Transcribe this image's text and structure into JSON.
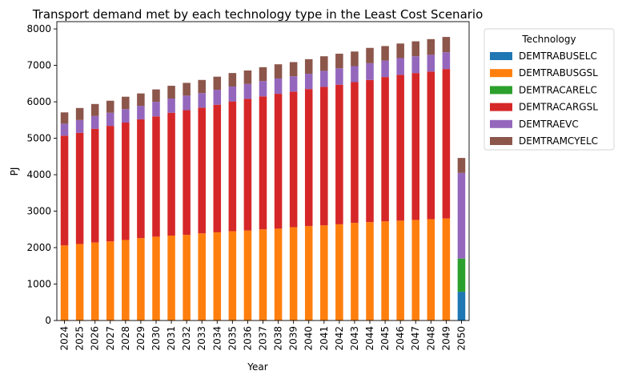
{
  "chart_data": {
    "type": "bar",
    "stacked": true,
    "title": "Transport demand met by each technology type in the Least Cost Scenario",
    "xlabel": "Year",
    "ylabel": "PJ",
    "ylim": [
      0,
      8200
    ],
    "yticks": [
      0,
      1000,
      2000,
      3000,
      4000,
      5000,
      6000,
      7000,
      8000
    ],
    "grid": false,
    "legend": {
      "title": "Technology",
      "placement": "outside-right"
    },
    "categories": [
      "2024",
      "2025",
      "2026",
      "2027",
      "2028",
      "2029",
      "2030",
      "2031",
      "2032",
      "2033",
      "2034",
      "2035",
      "2036",
      "2037",
      "2038",
      "2039",
      "2040",
      "2041",
      "2042",
      "2043",
      "2044",
      "2045",
      "2046",
      "2047",
      "2048",
      "2049",
      "2050"
    ],
    "series": [
      {
        "name": "DEMTRABUSELC",
        "color": "#1f77b4",
        "values": [
          0,
          0,
          0,
          0,
          0,
          0,
          0,
          0,
          0,
          0,
          0,
          0,
          0,
          0,
          0,
          0,
          0,
          0,
          0,
          0,
          0,
          0,
          0,
          0,
          0,
          0,
          790
        ]
      },
      {
        "name": "DEMTRABUSGSL",
        "color": "#ff7f0e",
        "values": [
          2060,
          2100,
          2140,
          2170,
          2210,
          2260,
          2300,
          2330,
          2350,
          2390,
          2420,
          2450,
          2470,
          2500,
          2520,
          2560,
          2590,
          2610,
          2640,
          2680,
          2700,
          2720,
          2740,
          2760,
          2780,
          2800,
          0
        ]
      },
      {
        "name": "DEMTRACARELC",
        "color": "#2ca02c",
        "values": [
          0,
          0,
          0,
          0,
          0,
          0,
          0,
          0,
          0,
          0,
          0,
          0,
          0,
          0,
          0,
          0,
          0,
          0,
          0,
          0,
          0,
          0,
          0,
          0,
          0,
          0,
          910
        ]
      },
      {
        "name": "DEMTRACARGSL",
        "color": "#d62728",
        "values": [
          3010,
          3050,
          3120,
          3170,
          3220,
          3260,
          3300,
          3370,
          3420,
          3450,
          3500,
          3560,
          3610,
          3650,
          3700,
          3720,
          3760,
          3800,
          3830,
          3860,
          3900,
          3960,
          4000,
          4030,
          4050,
          4100,
          0
        ]
      },
      {
        "name": "DEMTRAEVC",
        "color": "#9467bd",
        "values": [
          330,
          350,
          350,
          360,
          370,
          370,
          400,
          390,
          400,
          400,
          410,
          410,
          410,
          420,
          420,
          420,
          420,
          440,
          450,
          440,
          460,
          450,
          460,
          460,
          460,
          460,
          2350
        ]
      },
      {
        "name": "DEMTRAMCYELC",
        "color": "#8c564b",
        "values": [
          310,
          330,
          330,
          330,
          340,
          340,
          340,
          350,
          350,
          360,
          360,
          370,
          370,
          380,
          390,
          390,
          400,
          400,
          400,
          400,
          420,
          400,
          400,
          410,
          430,
          420,
          410
        ]
      }
    ]
  }
}
